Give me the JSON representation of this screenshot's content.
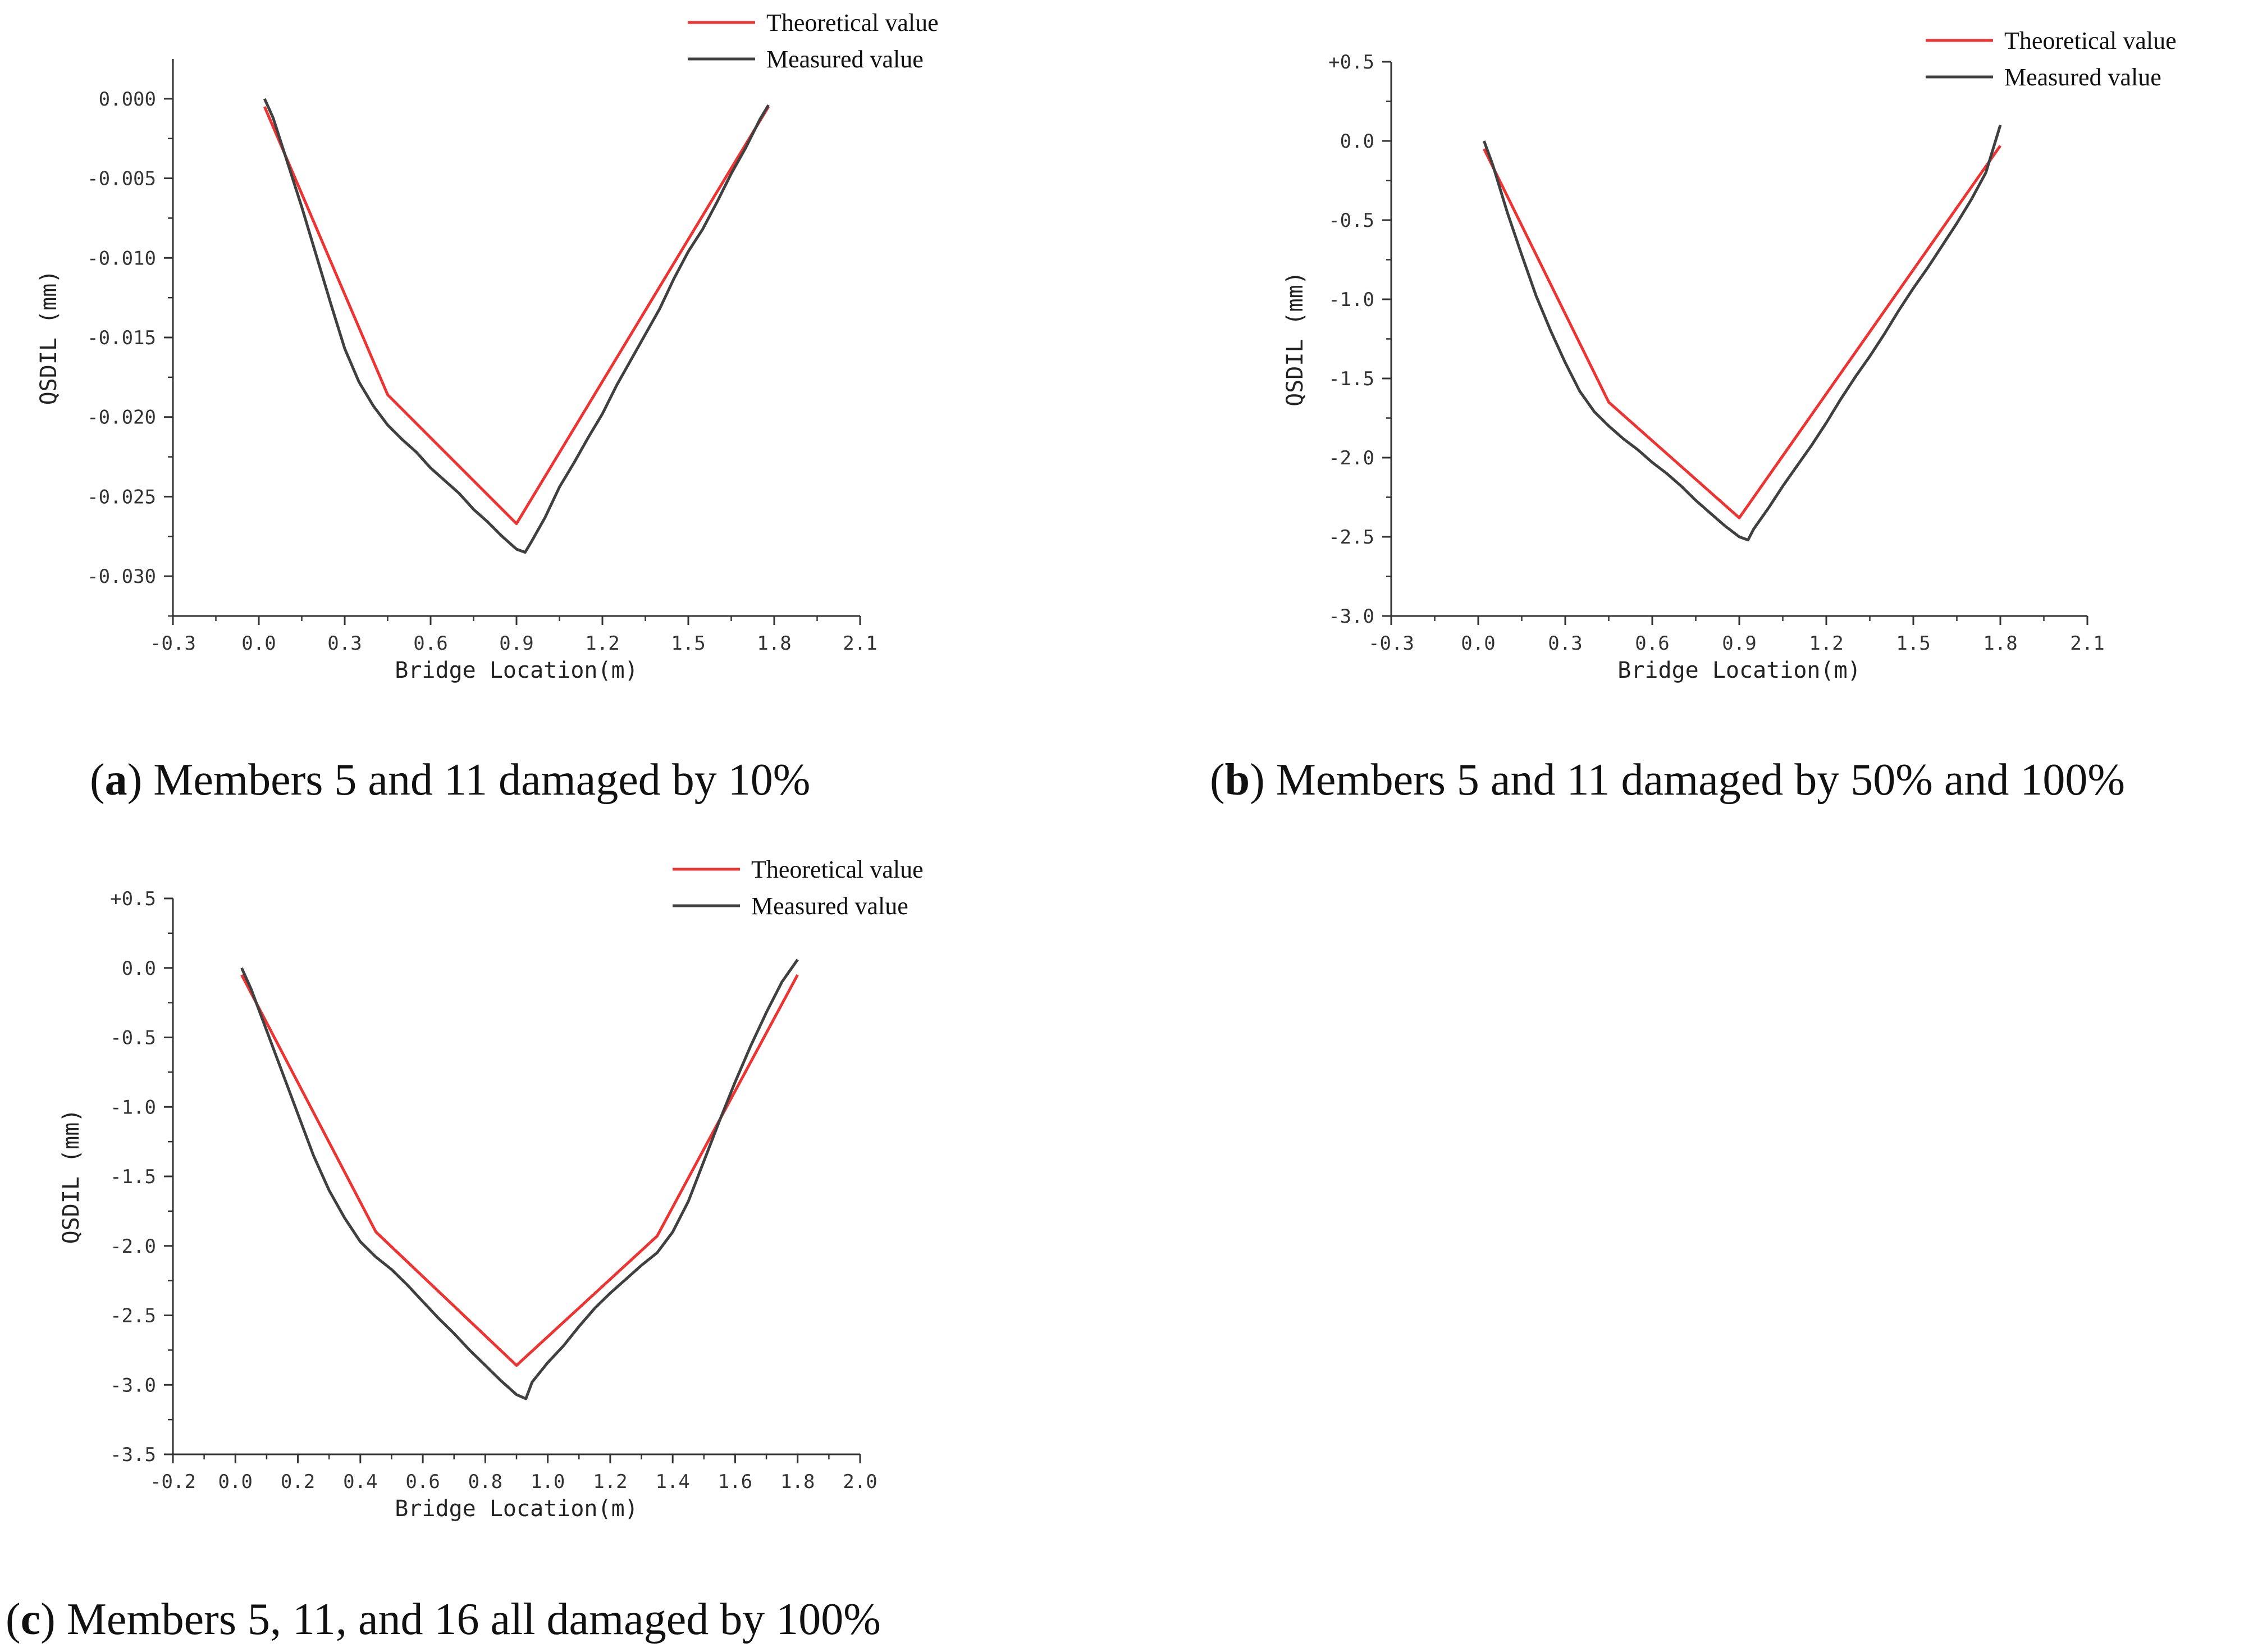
{
  "chart_data": [
    {
      "type": "line",
      "id": "a",
      "caption_letter": "a",
      "caption_text": "Members 5 and 11 damaged by 10%",
      "xlabel": "Bridge Location(m)",
      "ylabel": "QSDIL (mm)",
      "xlim": [
        -0.3,
        2.1
      ],
      "ylim": [
        -0.0325,
        0.0025
      ],
      "x_ticks": [
        -0.3,
        0.0,
        0.3,
        0.6,
        0.9,
        1.2,
        1.5,
        1.8,
        2.1
      ],
      "x_tick_labels": [
        "-0.3",
        "0.0",
        "0.3",
        "0.6",
        "0.9",
        "1.2",
        "1.5",
        "1.8",
        "2.1"
      ],
      "y_ticks": [
        0.0,
        -0.005,
        -0.01,
        -0.015,
        -0.02,
        -0.025,
        -0.03
      ],
      "y_tick_labels": [
        "0.000",
        "-0.005",
        "-0.010",
        "-0.015",
        "-0.020",
        "-0.025",
        "-0.030"
      ],
      "legend": [
        "Measured value",
        "Theoretical value"
      ],
      "legend_position": "top-right",
      "series": [
        {
          "name": "Theoretical value",
          "color": "#ee3333",
          "x": [
            0.02,
            0.45,
            0.9,
            1.78
          ],
          "y": [
            -0.0005,
            -0.0186,
            -0.0267,
            -0.0005
          ]
        },
        {
          "name": "Measured value",
          "color": "#404040",
          "x": [
            0.02,
            0.05,
            0.1,
            0.15,
            0.2,
            0.25,
            0.3,
            0.35,
            0.4,
            0.45,
            0.5,
            0.55,
            0.6,
            0.65,
            0.7,
            0.75,
            0.8,
            0.85,
            0.9,
            0.93,
            0.95,
            1.0,
            1.05,
            1.1,
            1.15,
            1.2,
            1.25,
            1.3,
            1.35,
            1.4,
            1.45,
            1.5,
            1.55,
            1.6,
            1.65,
            1.7,
            1.75,
            1.78
          ],
          "y": [
            0.0,
            -0.0012,
            -0.004,
            -0.0068,
            -0.0098,
            -0.0128,
            -0.0157,
            -0.0178,
            -0.0193,
            -0.0205,
            -0.0214,
            -0.0222,
            -0.0232,
            -0.024,
            -0.0248,
            -0.0258,
            -0.0266,
            -0.0275,
            -0.0283,
            -0.0285,
            -0.0279,
            -0.0263,
            -0.0244,
            -0.0229,
            -0.0213,
            -0.0198,
            -0.018,
            -0.0164,
            -0.0148,
            -0.0132,
            -0.0113,
            -0.0096,
            -0.0082,
            -0.0065,
            -0.0047,
            -0.0031,
            -0.0013,
            -0.0004
          ]
        }
      ]
    },
    {
      "type": "line",
      "id": "b",
      "caption_letter": "b",
      "caption_text": "Members 5 and 11 damaged by 50% and 100%",
      "xlabel": "Bridge Location(m)",
      "ylabel": "QSDIL (mm)",
      "xlim": [
        -0.3,
        2.1
      ],
      "ylim": [
        -3.0,
        0.5
      ],
      "x_ticks": [
        -0.3,
        0.0,
        0.3,
        0.6,
        0.9,
        1.2,
        1.5,
        1.8,
        2.1
      ],
      "x_tick_labels": [
        "-0.3",
        "0.0",
        "0.3",
        "0.6",
        "0.9",
        "1.2",
        "1.5",
        "1.8",
        "2.1"
      ],
      "y_ticks": [
        0.5,
        0.0,
        -0.5,
        -1.0,
        -1.5,
        -2.0,
        -2.5,
        -3.0
      ],
      "y_tick_labels": [
        "+0.5",
        "0.0",
        "-0.5",
        "-1.0",
        "-1.5",
        "-2.0",
        "-2.5",
        "-3.0"
      ],
      "legend": [
        "Measured value",
        "Theoretical value"
      ],
      "legend_position": "top-right",
      "series": [
        {
          "name": "Theoretical value",
          "color": "#ee3333",
          "x": [
            0.02,
            0.45,
            0.9,
            1.8
          ],
          "y": [
            -0.05,
            -1.65,
            -2.38,
            -0.03
          ]
        },
        {
          "name": "Measured value",
          "color": "#404040",
          "x": [
            0.02,
            0.05,
            0.1,
            0.15,
            0.2,
            0.25,
            0.3,
            0.35,
            0.4,
            0.45,
            0.5,
            0.55,
            0.6,
            0.65,
            0.7,
            0.75,
            0.8,
            0.85,
            0.9,
            0.93,
            0.95,
            1.0,
            1.05,
            1.1,
            1.15,
            1.2,
            1.25,
            1.3,
            1.35,
            1.4,
            1.45,
            1.5,
            1.55,
            1.6,
            1.65,
            1.7,
            1.75,
            1.8
          ],
          "y": [
            0.0,
            -0.15,
            -0.45,
            -0.72,
            -0.98,
            -1.2,
            -1.4,
            -1.58,
            -1.71,
            -1.8,
            -1.88,
            -1.95,
            -2.03,
            -2.1,
            -2.18,
            -2.27,
            -2.35,
            -2.43,
            -2.5,
            -2.52,
            -2.45,
            -2.32,
            -2.18,
            -2.05,
            -1.92,
            -1.78,
            -1.63,
            -1.49,
            -1.36,
            -1.22,
            -1.07,
            -0.93,
            -0.8,
            -0.66,
            -0.52,
            -0.37,
            -0.2,
            0.1
          ]
        }
      ]
    },
    {
      "type": "line",
      "id": "c",
      "caption_letter": "c",
      "caption_text": "Members 5, 11, and 16 all damaged by 100%",
      "xlabel": "Bridge Location(m)",
      "ylabel": "QSDIL (mm)",
      "xlim": [
        -0.2,
        2.0
      ],
      "ylim": [
        -3.5,
        0.5
      ],
      "x_ticks": [
        -0.2,
        0.0,
        0.2,
        0.4,
        0.6,
        0.8,
        1.0,
        1.2,
        1.4,
        1.6,
        1.8,
        2.0
      ],
      "x_tick_labels": [
        "-0.2",
        "0.0",
        "0.2",
        "0.4",
        "0.6",
        "0.8",
        "1.0",
        "1.2",
        "1.4",
        "1.6",
        "1.8",
        "2.0"
      ],
      "y_ticks": [
        0.5,
        0.0,
        -0.5,
        -1.0,
        -1.5,
        -2.0,
        -2.5,
        -3.0,
        -3.5
      ],
      "y_tick_labels": [
        "+0.5",
        "0.0",
        "-0.5",
        "-1.0",
        "-1.5",
        "-2.0",
        "-2.5",
        "-3.0",
        "-3.5"
      ],
      "legend": [
        "Measured value",
        "Theoretical value"
      ],
      "legend_position": "top-right",
      "series": [
        {
          "name": "Theoretical value",
          "color": "#ee3333",
          "x": [
            0.02,
            0.45,
            0.9,
            1.35,
            1.8
          ],
          "y": [
            -0.05,
            -1.9,
            -2.86,
            -1.93,
            -0.05
          ]
        },
        {
          "name": "Measured value",
          "color": "#404040",
          "x": [
            0.02,
            0.05,
            0.1,
            0.15,
            0.2,
            0.25,
            0.3,
            0.35,
            0.4,
            0.45,
            0.5,
            0.55,
            0.6,
            0.65,
            0.7,
            0.75,
            0.8,
            0.85,
            0.9,
            0.93,
            0.95,
            1.0,
            1.05,
            1.1,
            1.15,
            1.2,
            1.25,
            1.3,
            1.35,
            1.4,
            1.45,
            1.5,
            1.55,
            1.6,
            1.65,
            1.7,
            1.75,
            1.8
          ],
          "y": [
            0.0,
            -0.15,
            -0.45,
            -0.75,
            -1.05,
            -1.35,
            -1.6,
            -1.8,
            -1.97,
            -2.08,
            -2.17,
            -2.28,
            -2.4,
            -2.52,
            -2.63,
            -2.75,
            -2.86,
            -2.97,
            -3.07,
            -3.1,
            -2.98,
            -2.84,
            -2.72,
            -2.58,
            -2.45,
            -2.34,
            -2.24,
            -2.14,
            -2.05,
            -1.9,
            -1.68,
            -1.39,
            -1.1,
            -0.82,
            -0.56,
            -0.32,
            -0.1,
            0.06
          ]
        }
      ]
    }
  ]
}
